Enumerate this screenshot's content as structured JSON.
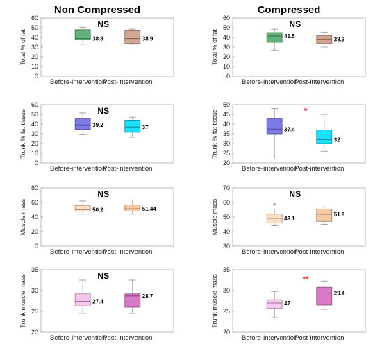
{
  "titles": {
    "left": "Non Compressed",
    "right": "Compressed"
  },
  "colors": {
    "green": "#63b27d",
    "tan": "#d4a592",
    "blue": "#7d7be9",
    "cyan": "#1ae1fb",
    "peach": "#fde0c2",
    "peach2": "#f8c9a2",
    "pink": "#f6c6ef",
    "magenta": "#d97ac7",
    "sig_black": "#000000",
    "sig_red": "#e83a3a",
    "outlier": "#e83a3a"
  },
  "chart_data": [
    {
      "id": "nc-fat",
      "type": "box",
      "ylabel": "Total % of fat",
      "ylim": [
        0,
        60
      ],
      "yticks": [
        0,
        10,
        20,
        30,
        40,
        50,
        60
      ],
      "categories": [
        "Before-intervention",
        "Post-intervention"
      ],
      "significance": "NS",
      "sig_color": "sig_black",
      "boxes": [
        {
          "min": 33,
          "q1": 37.5,
          "median": 38.8,
          "q3": 48,
          "max": 50.5,
          "label": "38.8",
          "color": "green"
        },
        {
          "min": 33,
          "q1": 34,
          "median": 38.9,
          "q3": 47.5,
          "max": 48.5,
          "label": "38.9",
          "color": "tan"
        }
      ]
    },
    {
      "id": "c-fat",
      "type": "box",
      "ylabel": "Total % of fat",
      "ylim": [
        0,
        60
      ],
      "yticks": [
        0,
        10,
        20,
        30,
        40,
        50,
        60
      ],
      "categories": [
        "Before-intervention",
        "Post-intervention"
      ],
      "significance": "NS",
      "sig_color": "sig_black",
      "boxes": [
        {
          "min": 27,
          "q1": 35,
          "median": 41.5,
          "q3": 45,
          "max": 48.5,
          "label": "41.5",
          "color": "green"
        },
        {
          "min": 30,
          "q1": 34,
          "median": 38.3,
          "q3": 42,
          "max": 45.5,
          "label": "38.3",
          "color": "tan"
        }
      ]
    },
    {
      "id": "nc-trunkfat",
      "type": "box",
      "ylabel": "Trunk % fat tissue",
      "ylim": [
        0,
        60
      ],
      "yticks": [
        0,
        10,
        20,
        30,
        40,
        50,
        60
      ],
      "categories": [
        "Before-intervention",
        "Post-intervention"
      ],
      "significance": "NS",
      "sig_color": "sig_black",
      "boxes": [
        {
          "min": 29.5,
          "q1": 34.5,
          "median": 39.2,
          "q3": 46,
          "max": 51.5,
          "label": "39.2",
          "color": "blue"
        },
        {
          "min": 26.5,
          "q1": 31.5,
          "median": 37,
          "q3": 44,
          "max": 47,
          "label": "37",
          "color": "cyan"
        }
      ]
    },
    {
      "id": "c-trunkfat",
      "type": "box",
      "ylabel": "Trunk % fat tissue",
      "ylim": [
        20,
        50
      ],
      "yticks": [
        20,
        25,
        30,
        35,
        40,
        45,
        50
      ],
      "categories": [
        "Before-intervention",
        "Post-intervention"
      ],
      "significance": "*",
      "sig_color": "sig_red",
      "boxes": [
        {
          "min": 22,
          "q1": 35,
          "median": 37.4,
          "q3": 43,
          "max": 48,
          "label": "37.4",
          "color": "blue"
        },
        {
          "min": 26,
          "q1": 30,
          "median": 32,
          "q3": 37,
          "max": 45,
          "label": "32",
          "color": "cyan"
        }
      ]
    },
    {
      "id": "nc-muscle",
      "type": "box",
      "ylabel": "Muscle mass",
      "ylim": [
        0,
        80
      ],
      "yticks": [
        0,
        20,
        40,
        60,
        80
      ],
      "categories": [
        "Before-intervention",
        "Post-intervention"
      ],
      "significance": "NS",
      "sig_color": "sig_black",
      "boxes": [
        {
          "min": 44,
          "q1": 48,
          "median": 50.2,
          "q3": 56,
          "max": 62,
          "label": "50.2",
          "color": "peach"
        },
        {
          "min": 44,
          "q1": 48,
          "median": 51.44,
          "q3": 56.5,
          "max": 63.5,
          "label": "51.44",
          "color": "peach2"
        }
      ]
    },
    {
      "id": "c-muscle",
      "type": "box",
      "ylabel": "Muscle mass",
      "ylim": [
        30,
        70
      ],
      "yticks": [
        30,
        40,
        50,
        60,
        70
      ],
      "categories": [
        "Before-intervention",
        "Post-intervention"
      ],
      "significance": "NS",
      "sig_color": "sig_black",
      "boxes": [
        {
          "min": 44,
          "q1": 46,
          "median": 49.1,
          "q3": 52,
          "max": 55.5,
          "label": "49.1",
          "outliers": [
            59
          ],
          "color": "peach"
        },
        {
          "min": 45,
          "q1": 47,
          "median": 51.9,
          "q3": 55.5,
          "max": 57,
          "label": "51.9",
          "color": "peach2"
        }
      ]
    },
    {
      "id": "nc-trunkmuscle",
      "type": "box",
      "ylabel": "Trunk muscle mass",
      "ylim": [
        20,
        35
      ],
      "yticks": [
        20,
        25,
        30,
        35
      ],
      "categories": [
        "Before-intervention",
        "Post-intervention"
      ],
      "significance": "NS",
      "sig_color": "sig_black",
      "boxes": [
        {
          "min": 24.5,
          "q1": 26.3,
          "median": 27.4,
          "q3": 29.2,
          "max": 32.5,
          "label": "27.4",
          "color": "pink"
        },
        {
          "min": 24.5,
          "q1": 26,
          "median": 28.7,
          "q3": 29.2,
          "max": 32.5,
          "label": "28.7",
          "color": "magenta"
        }
      ]
    },
    {
      "id": "c-trunkmuscle",
      "type": "box",
      "ylabel": "Trunk muscle mass",
      "ylim": [
        20,
        35
      ],
      "yticks": [
        20,
        25,
        30,
        35
      ],
      "categories": [
        "Before-intervention",
        "Post-intervention"
      ],
      "significance": "**",
      "sig_color": "sig_red",
      "boxes": [
        {
          "min": 23.5,
          "q1": 25.7,
          "median": 27,
          "q3": 27.8,
          "max": 29.8,
          "label": "27",
          "color": "pink"
        },
        {
          "min": 25.5,
          "q1": 26.5,
          "median": 29.4,
          "q3": 30.8,
          "max": 32.3,
          "label": "29.4",
          "color": "magenta"
        }
      ]
    }
  ]
}
